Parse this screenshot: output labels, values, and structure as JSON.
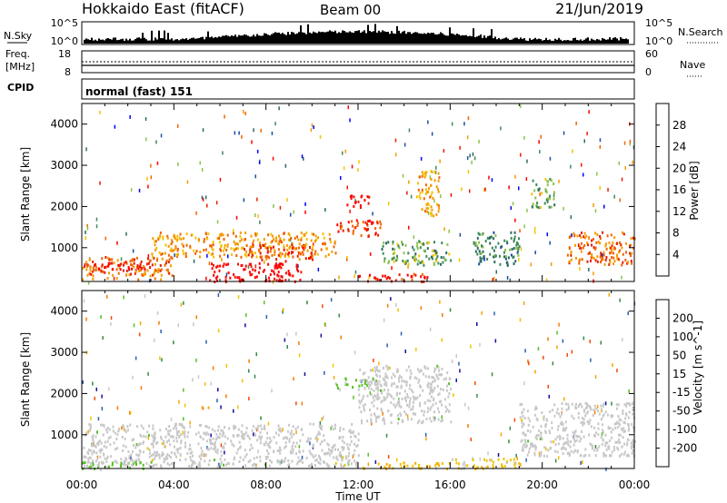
{
  "header": {
    "radar": "Hokkaido East (fitACF)",
    "beam": "Beam 00",
    "date": "21/Jun/2019"
  },
  "strip_panels": {
    "nsky": {
      "left_label": "N.Sky",
      "ticks": [
        "10^5",
        "10^0"
      ],
      "right_label": "N.Search",
      "right_ticks": [
        "10^5",
        "10^0"
      ]
    },
    "freq": {
      "left_label_1": "Freq.",
      "left_label_2": "[MHz]",
      "ticks": [
        "18",
        "8"
      ],
      "right_label": "Nave",
      "right_ticks": [
        "60",
        "0"
      ]
    },
    "cpid": {
      "left_label": "CPID",
      "program": "normal (fast) 151"
    }
  },
  "colors": {
    "power": [
      "#0000ff",
      "#1a4fa0",
      "#2b6a63",
      "#3e8a5a",
      "#8bc34a",
      "#f3c200",
      "#f49b00",
      "#f06400",
      "#e81e00",
      "#ff0000"
    ],
    "velocity": [
      "#ff0000",
      "#f44a00",
      "#f67a00",
      "#f6a500",
      "#f2c200",
      "#c8c8c8",
      "#55c020",
      "#2e8a47",
      "#2c5fb0",
      "#1010a0",
      "#0000ff"
    ],
    "ground_gray": "#c8c8c8"
  },
  "chart_data": [
    {
      "type": "heatmap",
      "title": "Power",
      "xlabel": "Time UT",
      "ylabel": "Slant Range [km]",
      "x_ticks": [
        "00:00",
        "04:00",
        "08:00",
        "12:00",
        "16:00",
        "20:00",
        "00:00"
      ],
      "xlim_hours": [
        0,
        24
      ],
      "y_ticks": [
        "4000",
        "3000",
        "2000",
        "1000"
      ],
      "ylim_km": [
        180,
        4500
      ],
      "colorbar": {
        "label": "Power [dB]",
        "ticks": [
          "28",
          "24",
          "20",
          "16",
          "12",
          "8",
          "4"
        ],
        "range": [
          0,
          30
        ]
      },
      "regions": [
        {
          "t": [
            0,
            4
          ],
          "r": [
            250,
            800
          ],
          "value": 22
        },
        {
          "t": [
            0.5,
            3
          ],
          "r": [
            500,
            700
          ],
          "value": 28
        },
        {
          "t": [
            3,
            11
          ],
          "r": [
            800,
            1400
          ],
          "value": 20
        },
        {
          "t": [
            5.5,
            9.5
          ],
          "r": [
            200,
            650
          ],
          "value": 30
        },
        {
          "t": [
            7,
            10
          ],
          "r": [
            700,
            1100
          ],
          "value": 24
        },
        {
          "t": [
            11,
            13
          ],
          "r": [
            1300,
            1700
          ],
          "value": 25
        },
        {
          "t": [
            11.5,
            12.5
          ],
          "r": [
            2000,
            2300
          ],
          "value": 29
        },
        {
          "t": [
            14.5,
            15.5
          ],
          "r": [
            1800,
            2900
          ],
          "value": 19
        },
        {
          "t": [
            13,
            16
          ],
          "r": [
            600,
            1200
          ],
          "value": 12
        },
        {
          "t": [
            17,
            19
          ],
          "r": [
            600,
            1400
          ],
          "value": 9
        },
        {
          "t": [
            21,
            24
          ],
          "r": [
            600,
            1400
          ],
          "value": 22
        },
        {
          "t": [
            19.5,
            20.5
          ],
          "r": [
            2000,
            2700
          ],
          "value": 12
        },
        {
          "t": [
            12,
            15
          ],
          "r": [
            200,
            400
          ],
          "value": 27
        }
      ]
    },
    {
      "type": "heatmap",
      "title": "Velocity",
      "xlabel": "Time UT",
      "ylabel": "Slant Range [km]",
      "x_ticks": [
        "00:00",
        "04:00",
        "08:00",
        "12:00",
        "16:00",
        "20:00",
        "00:00"
      ],
      "xlim_hours": [
        0,
        24
      ],
      "y_ticks": [
        "4000",
        "3000",
        "2000",
        "1000"
      ],
      "ylim_km": [
        180,
        4500
      ],
      "colorbar": {
        "label": "Velocity [m s^-1]",
        "ticks": [
          "200",
          "100",
          "50",
          "15",
          "-15",
          "-50",
          "-100",
          "-200"
        ],
        "range": [
          -250,
          250
        ]
      },
      "regions": [
        {
          "t": [
            0,
            12
          ],
          "r": [
            250,
            1300
          ],
          "value": 0,
          "ground_scatter": true
        },
        {
          "t": [
            12,
            16
          ],
          "r": [
            1300,
            2700
          ],
          "value": 0,
          "ground_scatter": true
        },
        {
          "t": [
            19,
            24
          ],
          "r": [
            500,
            1800
          ],
          "value": 0,
          "ground_scatter": true
        },
        {
          "t": [
            0,
            3
          ],
          "r": [
            200,
            400
          ],
          "value": 40
        },
        {
          "t": [
            11,
            13
          ],
          "r": [
            2100,
            2400
          ],
          "value": 30
        },
        {
          "t": [
            16,
            19
          ],
          "r": [
            200,
            450
          ],
          "value": -40
        },
        {
          "t": [
            12,
            16
          ],
          "r": [
            200,
            350
          ],
          "value": -60
        },
        {
          "t": [
            5,
            5.5
          ],
          "r": [
            1650,
            1750
          ],
          "value": -120
        }
      ]
    }
  ]
}
